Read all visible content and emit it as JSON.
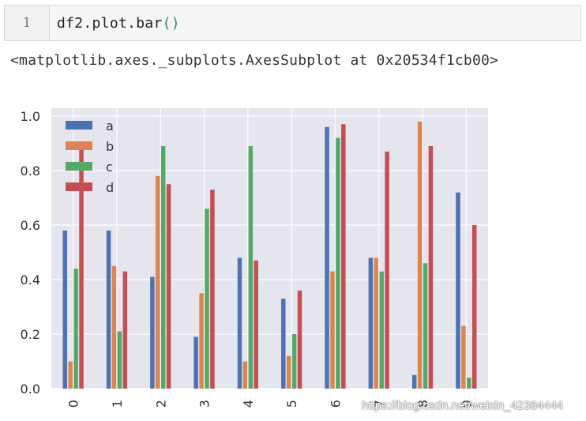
{
  "cell": {
    "prompt_number": "1",
    "code_text": "df2.plot.bar",
    "code_parens": "()"
  },
  "output": {
    "text": "<matplotlib.axes._subplots.AxesSubplot at 0x20534f1cb00>"
  },
  "chart_data": {
    "type": "bar",
    "categories": [
      "0",
      "1",
      "2",
      "3",
      "4",
      "5",
      "6",
      "7",
      "8",
      "9"
    ],
    "series": [
      {
        "name": "a",
        "color": "#4c72b0",
        "values": [
          0.58,
          0.58,
          0.41,
          0.19,
          0.48,
          0.33,
          0.96,
          0.48,
          0.05,
          0.72
        ]
      },
      {
        "name": "b",
        "color": "#dd8452",
        "values": [
          0.1,
          0.45,
          0.78,
          0.35,
          0.1,
          0.12,
          0.43,
          0.48,
          0.98,
          0.23
        ]
      },
      {
        "name": "c",
        "color": "#55a868",
        "values": [
          0.44,
          0.21,
          0.89,
          0.66,
          0.89,
          0.2,
          0.92,
          0.43,
          0.46,
          0.04
        ]
      },
      {
        "name": "d",
        "color": "#c44e52",
        "values": [
          0.88,
          0.43,
          0.75,
          0.73,
          0.47,
          0.36,
          0.97,
          0.87,
          0.89,
          0.6
        ]
      }
    ],
    "yticks": [
      "0.0",
      "0.2",
      "0.4",
      "0.6",
      "0.8",
      "1.0"
    ],
    "ylim": [
      0,
      1.0
    ],
    "grid": true,
    "legend_position": "top-left",
    "background_color": "#e5e5ee"
  },
  "watermark": "https://blog.csdn.net/weixin_42384444"
}
